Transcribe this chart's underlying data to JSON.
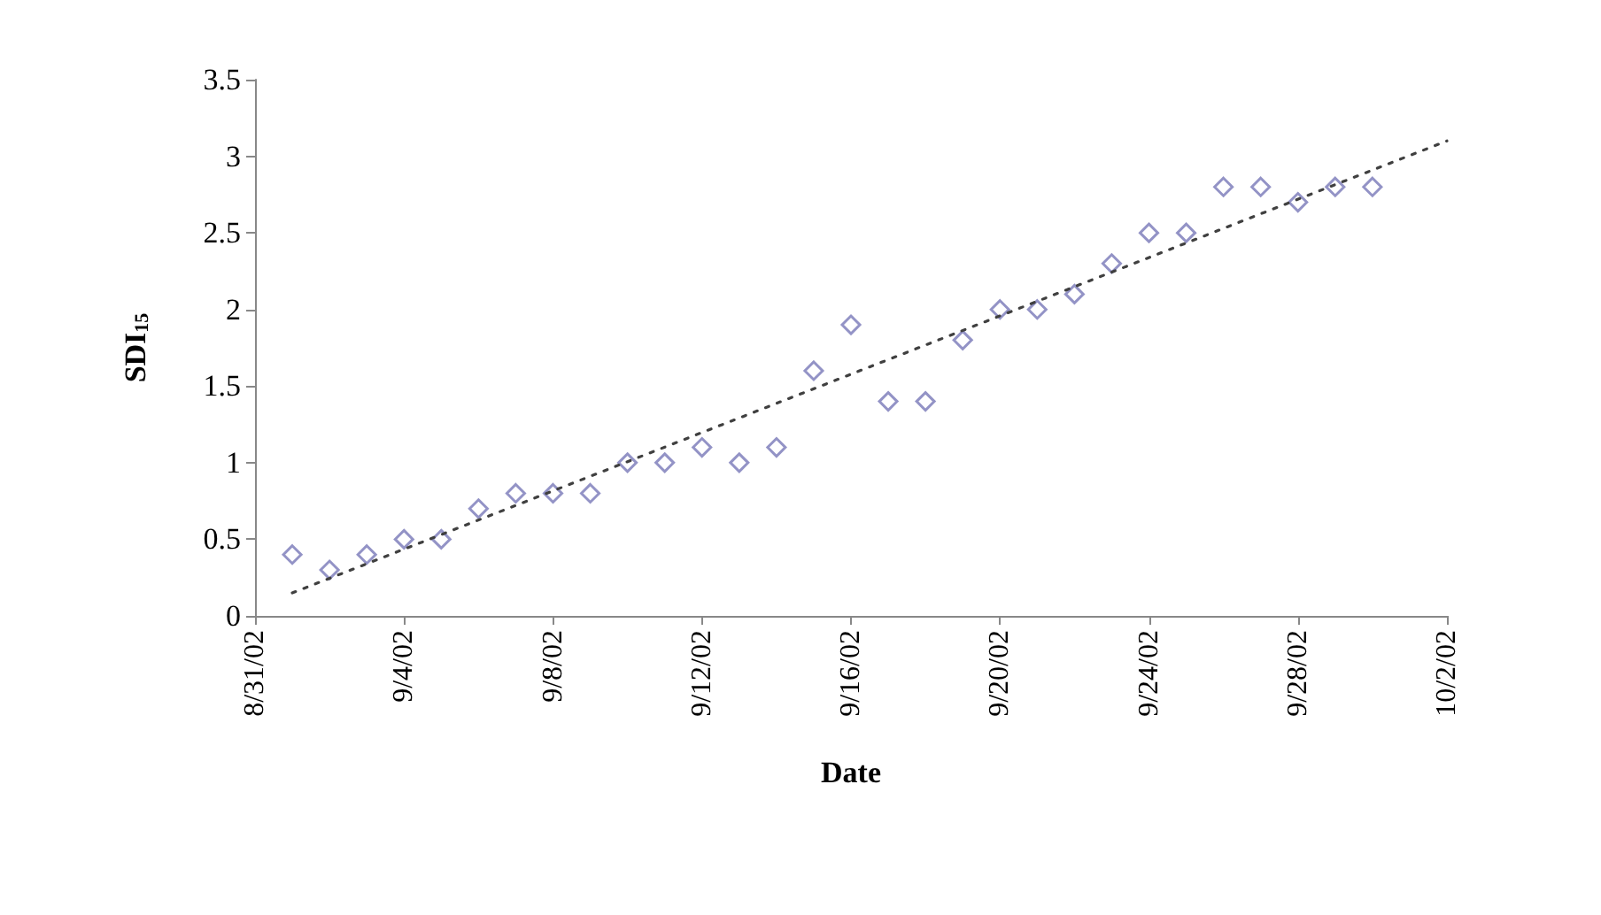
{
  "chart_data": {
    "type": "scatter",
    "xlabel": "Date",
    "ylabel": "SDI$_{15}$",
    "xlim": [
      "--08-31",
      "--10-02"
    ],
    "xticks": [
      {
        "value": "--08-31",
        "label": "8/31/02"
      },
      {
        "value": "--09-04",
        "label": "9/4/02"
      },
      {
        "value": "--09-08",
        "label": "9/8/02"
      },
      {
        "value": "--09-12",
        "label": "9/12/02"
      },
      {
        "value": "--09-16",
        "label": "9/16/02"
      },
      {
        "value": "--09-20",
        "label": "9/20/02"
      },
      {
        "value": "--09-24",
        "label": "9/24/02"
      },
      {
        "value": "--09-28",
        "label": "9/28/02"
      },
      {
        "value": "--10-02",
        "label": "10/2/02"
      }
    ],
    "ylim": [
      0,
      3.5
    ],
    "yticks": [
      0,
      0.5,
      1,
      1.5,
      2,
      2.5,
      3,
      3.5
    ],
    "grid": false,
    "series": [
      {
        "color": "#7878b8",
        "marker": "diamond",
        "x": [
          "--09-01",
          "--09-02",
          "--09-03",
          "--09-04",
          "--09-05",
          "--09-06",
          "--09-07",
          "--09-08",
          "--09-09",
          "--09-10",
          "--09-11",
          "--09-12",
          "--09-13",
          "--09-14",
          "--09-15",
          "--09-16",
          "--09-17",
          "--09-18",
          "--09-19",
          "--09-20",
          "--09-21",
          "--09-22",
          "--09-23",
          "--09-24",
          "--09-25",
          "--09-26",
          "--09-27",
          "--09-28",
          "--09-29",
          "--09-30"
        ],
        "values": [
          0.4,
          0.3,
          0.4,
          0.5,
          0.5,
          0.7,
          0.8,
          0.8,
          0.8,
          1.0,
          1.0,
          1.1,
          1.0,
          1.1,
          1.6,
          1.9,
          1.4,
          1.4,
          1.8,
          2.0,
          2.0,
          2.1,
          2.3,
          2.5,
          2.5,
          2.8,
          2.8,
          2.7,
          2.8,
          2.8
        ]
      },
      {
        "type": "line",
        "color": "#404040",
        "marker": "none",
        "line_style": "dotted",
        "x": [
          "--09-01",
          "--10-02"
        ],
        "values": [
          0.15,
          3.1
        ]
      }
    ]
  }
}
